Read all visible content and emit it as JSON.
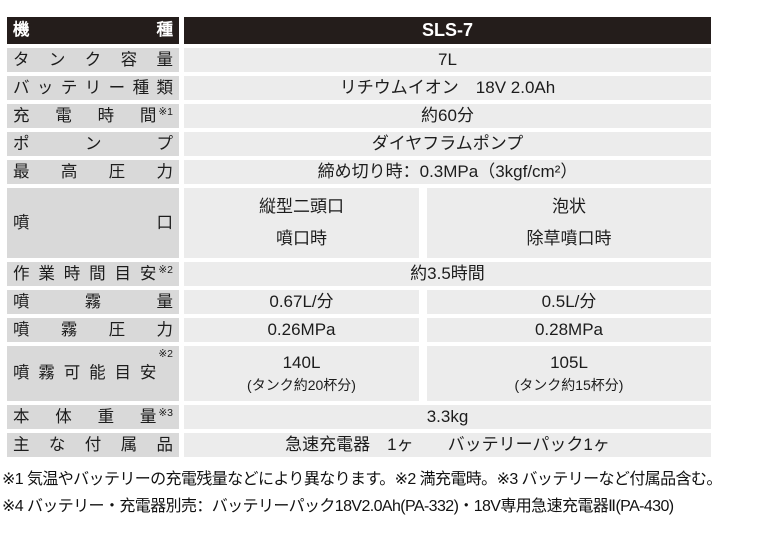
{
  "colors": {
    "header_bg": "#241d1b",
    "header_text": "#ffffff",
    "label_bg": "#d9d9d9",
    "cell_bg": "#ececec",
    "text": "#1c1c1c"
  },
  "table": {
    "header": {
      "label": "機種",
      "value": "SLS-7"
    },
    "rows": [
      {
        "label": "タンク容量",
        "note": "",
        "value": "7L"
      },
      {
        "label": "バッテリー種類",
        "note": "",
        "value": "リチウムイオン　18V 2.0Ah"
      },
      {
        "label": "充電時間",
        "note": "※1",
        "value": "約60分"
      },
      {
        "label": "ポンプ",
        "note": "",
        "value": "ダイヤフラムポンプ"
      },
      {
        "label": "最高圧力",
        "note": "",
        "value": "締め切り時：0.3MPa（3kgf/cm²）"
      },
      {
        "label": "噴口",
        "note": "",
        "left": {
          "line1": "縦型二頭口",
          "line2": "噴口時"
        },
        "right": {
          "line1": "泡状",
          "line2": "除草噴口時"
        }
      },
      {
        "label": "作業時間目安",
        "note": "※2",
        "value": "約3.5時間"
      },
      {
        "label": "噴霧量",
        "note": "",
        "left_value": "0.67L/分",
        "right_value": "0.5L/分"
      },
      {
        "label": "噴霧圧力",
        "note": "",
        "left_value": "0.26MPa",
        "right_value": "0.28MPa"
      },
      {
        "label": "噴霧可能目安",
        "note": "※2",
        "left": {
          "line1": "140L",
          "line2": "(タンク約20杯分)"
        },
        "right": {
          "line1": "105L",
          "line2": "(タンク約15杯分)"
        }
      },
      {
        "label": "本体重量",
        "note": "※3",
        "value": "3.3kg"
      },
      {
        "label": "主な付属品",
        "note": "",
        "value": "急速充電器　1ヶ　　バッテリーパック1ヶ"
      }
    ],
    "footnotes": [
      "※1 気温やバッテリーの充電残量などにより異なります。※2 満充電時。※3 バッテリーなど付属品含む。",
      "※4 バッテリー・充電器別売：バッテリーパック18V2.0Ah(PA-332)・18V専用急速充電器Ⅱ(PA-430)"
    ]
  }
}
